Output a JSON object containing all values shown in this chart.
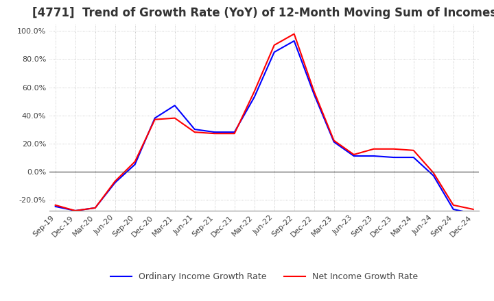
{
  "title": "[4771]  Trend of Growth Rate (YoY) of 12-Month Moving Sum of Incomes",
  "title_fontsize": 12,
  "title_color": "#333333",
  "background_color": "#ffffff",
  "grid_color": "#aaaaaa",
  "ylim": [
    -0.28,
    1.05
  ],
  "yticks": [
    -0.2,
    0.0,
    0.2,
    0.4,
    0.6,
    0.8,
    1.0
  ],
  "legend_labels": [
    "Ordinary Income Growth Rate",
    "Net Income Growth Rate"
  ],
  "legend_colors": [
    "#0000ff",
    "#ff0000"
  ],
  "x_labels": [
    "Sep-19",
    "Dec-19",
    "Mar-20",
    "Jun-20",
    "Sep-20",
    "Dec-20",
    "Mar-21",
    "Jun-21",
    "Sep-21",
    "Dec-21",
    "Mar-22",
    "Jun-22",
    "Sep-22",
    "Dec-22",
    "Mar-23",
    "Jun-23",
    "Sep-23",
    "Dec-23",
    "Mar-24",
    "Jun-24",
    "Sep-24",
    "Dec-24"
  ],
  "ordinary_income_growth": [
    -0.25,
    -0.28,
    -0.26,
    -0.08,
    0.05,
    0.38,
    0.47,
    0.3,
    0.28,
    0.28,
    0.53,
    0.85,
    0.93,
    0.55,
    0.21,
    0.11,
    0.11,
    0.1,
    0.1,
    -0.03,
    -0.27,
    -0.3
  ],
  "net_income_growth": [
    -0.24,
    -0.28,
    -0.26,
    -0.07,
    0.07,
    0.37,
    0.38,
    0.28,
    0.27,
    0.27,
    0.57,
    0.9,
    0.98,
    0.57,
    0.22,
    0.12,
    0.16,
    0.16,
    0.15,
    -0.01,
    -0.24,
    -0.27
  ]
}
